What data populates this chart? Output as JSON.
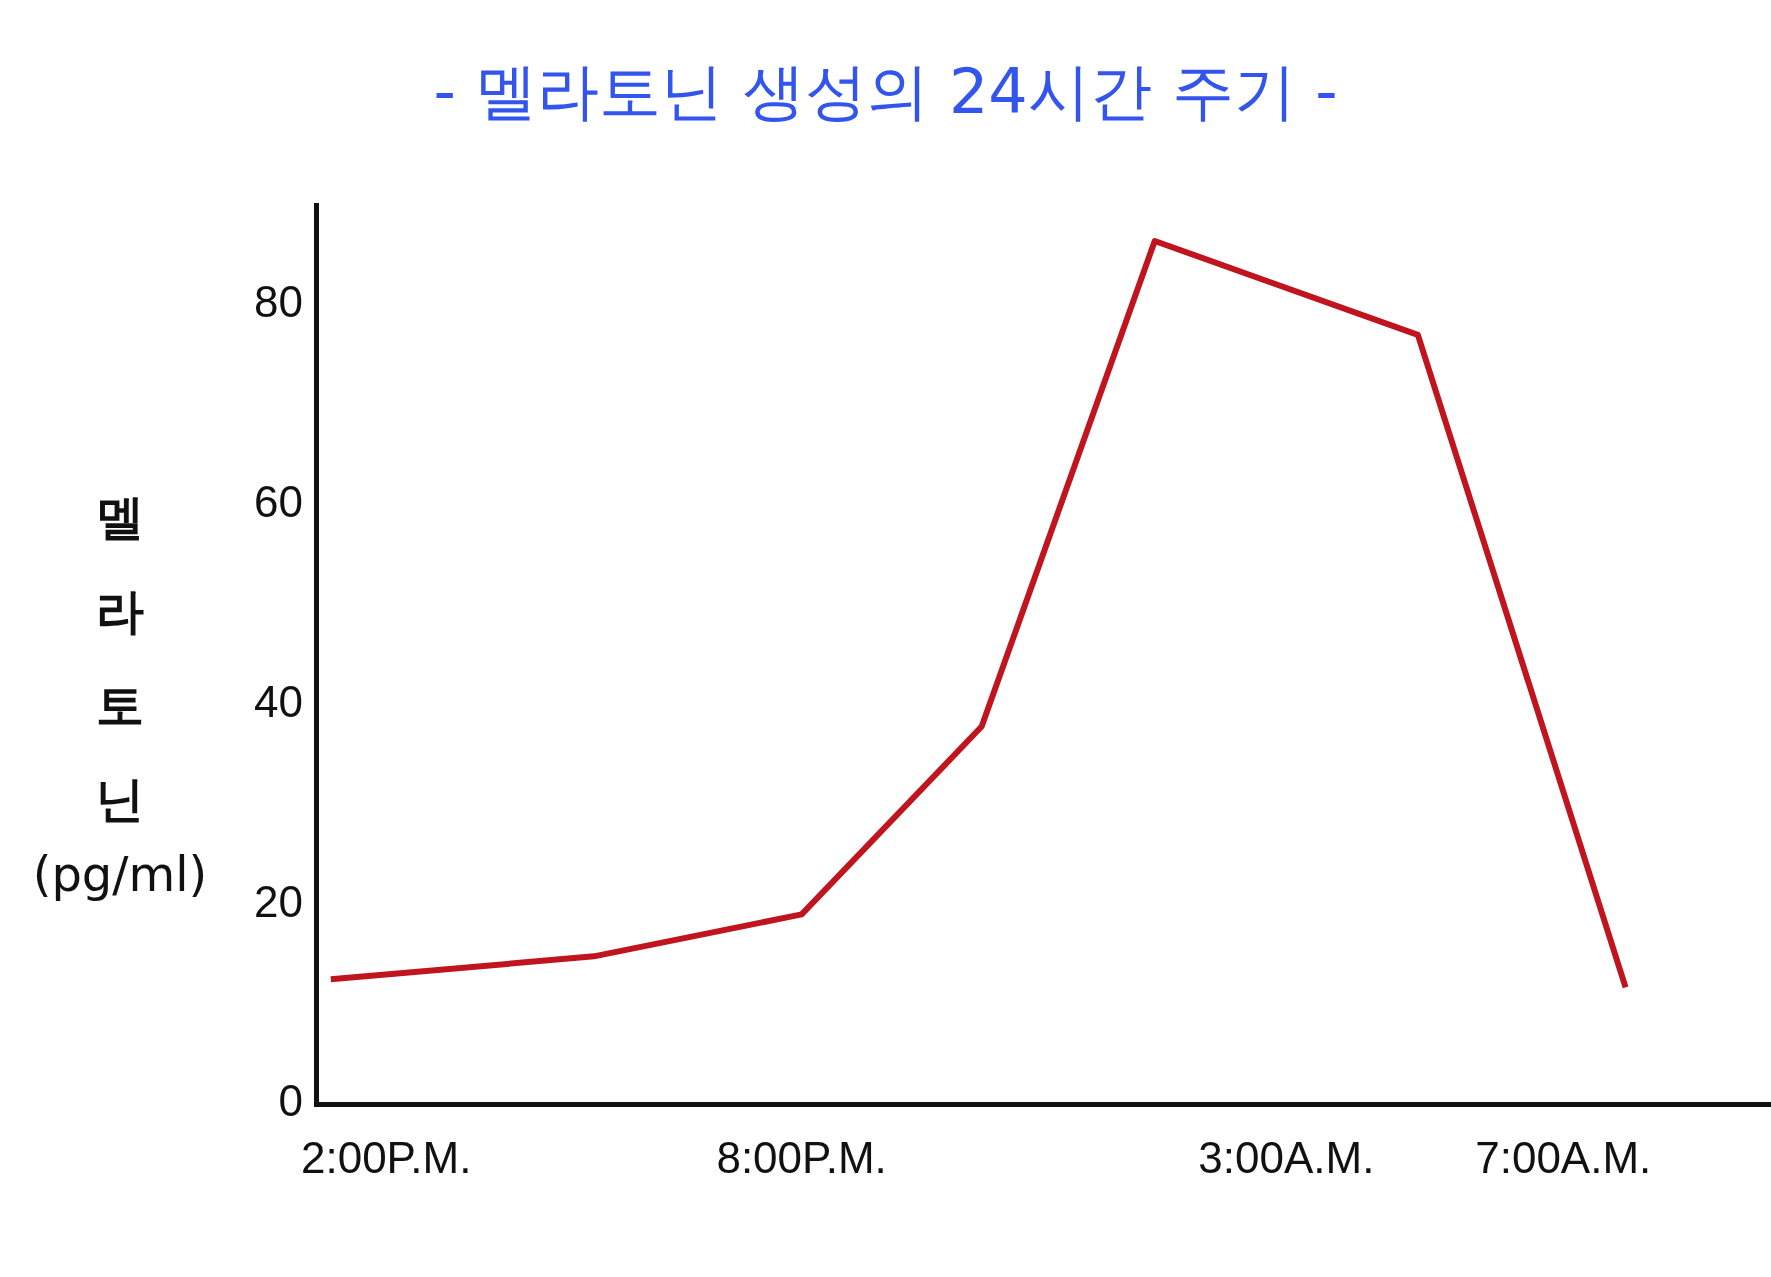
{
  "chart_data": {
    "type": "line",
    "title": "- 멜라토닌 생성의 24시간 주기 -",
    "ylabel": "멜라토닌 (pg/ml)",
    "x": [
      "--01-01T13:12",
      "--01-01T17:00",
      "--01-01T20:00",
      "--01-01T22:36",
      "--01-02T01:06",
      "--01-02T04:54",
      "--01-02T07:54"
    ],
    "series": [
      {
        "color": "#c0141e",
        "values": [
          12.5,
          14.8,
          19,
          37.8,
          86.4,
          77,
          11.7
        ]
      }
    ],
    "xlim": [
      "--01-01T13:00",
      "--01-02T10:00"
    ],
    "xticks": [
      {
        "value": "--01-01T14:00",
        "label": "2:00P.M."
      },
      {
        "value": "--01-01T20:00",
        "label": "8:00P.M."
      },
      {
        "value": "--01-02T03:00",
        "label": "3:00A.M."
      },
      {
        "value": "--01-02T07:00",
        "label": "7:00A.M."
      }
    ],
    "ylim": [
      0,
      90
    ],
    "yticks": [
      0,
      20,
      40,
      60,
      80
    ],
    "grid": false,
    "legend": false,
    "marker": "none",
    "line_style": "solid"
  }
}
